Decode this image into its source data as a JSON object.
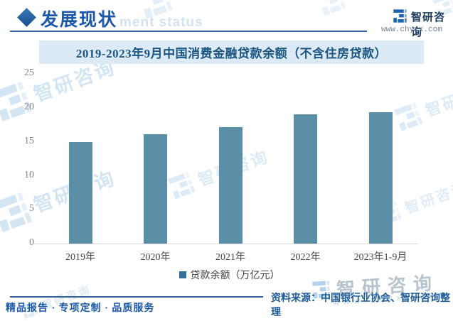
{
  "header": {
    "section_title": "发展现状",
    "section_subtitle_watermark": "ment status",
    "brand_name": "智研咨询",
    "website": "www.chyxx.com"
  },
  "chart_title": "2019-2023年9月中国消费金融贷款余额（不含住房贷款）",
  "chart_data": {
    "type": "bar",
    "title": "2019-2023年9月中国消费金融贷款余额（不含住房贷款）",
    "categories": [
      "2019年",
      "2020年",
      "2021年",
      "2022年",
      "2023年1-9月"
    ],
    "series": [
      {
        "name": "贷款余额（万亿元）",
        "values": [
          15.0,
          16.1,
          17.2,
          19.1,
          19.4
        ]
      }
    ],
    "legend": [
      "贷款余额（万亿元）"
    ],
    "legend_position": "bottom",
    "xlabel": "",
    "ylabel": "",
    "ylim": [
      0,
      25
    ],
    "yticks": [
      0,
      5,
      10,
      15,
      20,
      25
    ],
    "grid": false,
    "bar_color": "#5b8fa8"
  },
  "footer": {
    "tagline": "精品报告 · 专项定制 · 品质服务",
    "source": "资料来源：中国银行业协会、智研咨询整理"
  },
  "watermark": {
    "brand": "智研咨询",
    "website_spaced": "www.chyxx.com"
  },
  "colors": {
    "accent_blue": "#1b58a8",
    "bar": "#5b8fa8",
    "banner_bg": "#dbeaf5",
    "banner_text": "#1b5580",
    "rule": "#2d659e",
    "watermark_light": "#d3e4f2"
  }
}
